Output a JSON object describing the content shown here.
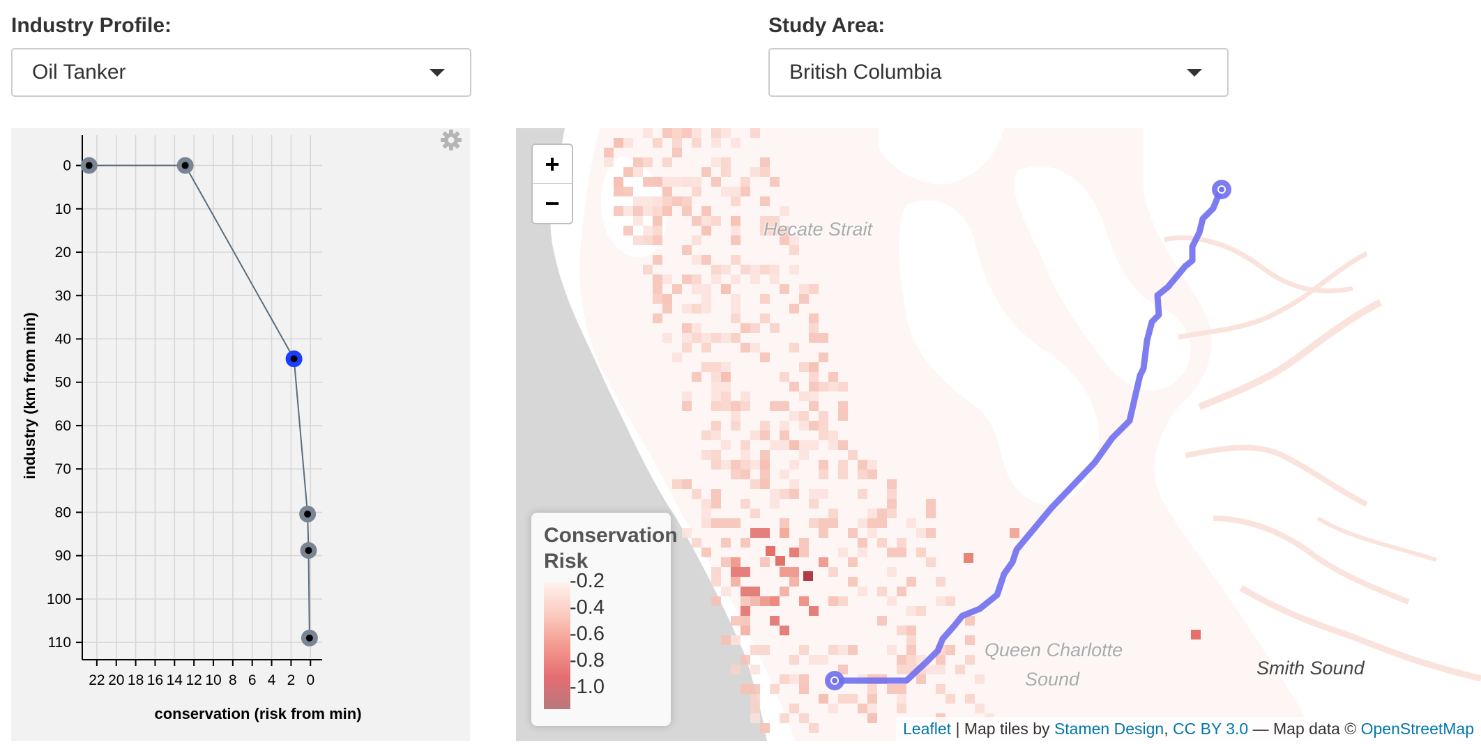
{
  "controls": {
    "industry_profile": {
      "label": "Industry Profile:",
      "value": "Oil Tanker"
    },
    "study_area": {
      "label": "Study Area:",
      "value": "British Columbia"
    }
  },
  "plot": {
    "icons": {
      "settings": "gear-icon"
    },
    "chart_data": {
      "type": "line",
      "xlabel": "conservation (risk from min)",
      "ylabel": "industry (km from min)",
      "xlim": [
        23.5,
        -1.2
      ],
      "ylim": [
        -7,
        114
      ],
      "x_ticks": [
        22,
        20,
        18,
        16,
        14,
        12,
        10,
        8,
        6,
        4,
        2,
        0
      ],
      "y_ticks": [
        0,
        10,
        20,
        30,
        40,
        50,
        60,
        70,
        80,
        90,
        100,
        110
      ],
      "grid": true,
      "series": [
        {
          "points": [
            {
              "x": 22.8,
              "y": 0
            },
            {
              "x": 12.9,
              "y": 0
            },
            {
              "x": 1.7,
              "y": 44.6
            },
            {
              "x": 0.3,
              "y": 80.4
            },
            {
              "x": 0.2,
              "y": 88.8
            },
            {
              "x": 0.1,
              "y": 109
            }
          ],
          "selected_index": 2
        }
      ],
      "colors": {
        "line": "#5a6b7b",
        "point": "#7a8594",
        "selected": "#1a3cff"
      }
    }
  },
  "map": {
    "zoom_in": "+",
    "zoom_out": "−",
    "places": {
      "hecate": "Hecate Strait",
      "queen1": "Queen Charlotte",
      "queen2": "Sound",
      "smith": "Smith Sound"
    },
    "legend": {
      "title_line1": "Conservation",
      "title_line2": "Risk",
      "ticks": [
        "-0.2",
        "-0.4",
        "-0.6",
        "-0.8",
        "-1.0"
      ]
    },
    "attribution": {
      "leaflet": "Leaflet",
      "sep1": " | Map tiles by ",
      "stamen": "Stamen Design",
      "comma": ", ",
      "cc": "CC BY 3.0",
      "sep2": " — Map data © ",
      "osm": "OpenStreetMap"
    },
    "colors": {
      "route": "#7070ee",
      "land": "#ffffff",
      "sea": "#fdf6f4",
      "ocean_grey": "#d6d6d6"
    }
  }
}
